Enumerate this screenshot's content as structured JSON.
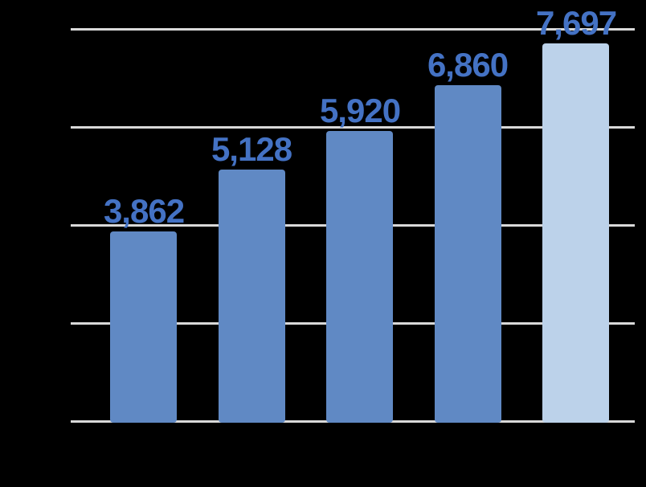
{
  "chart_data": {
    "type": "bar",
    "categories": [
      "",
      "",
      "",
      "",
      ""
    ],
    "values": [
      3862,
      5128,
      5920,
      6860,
      7697
    ],
    "labels": [
      "3,862",
      "5,128",
      "5,920",
      "6,860",
      "7,697"
    ],
    "title": "",
    "xlabel": "",
    "ylabel": "",
    "ylim": [
      0,
      8000
    ],
    "gridline_step": 2000,
    "grid": true,
    "legend": false,
    "data_labels": true,
    "bar_colors": [
      "#6089C4",
      "#6089C4",
      "#6089C4",
      "#6089C4",
      "#BCD2EA"
    ],
    "label_color": "#4472C4",
    "gridline_color": "#D9D9D9",
    "background_color": "#000000"
  }
}
